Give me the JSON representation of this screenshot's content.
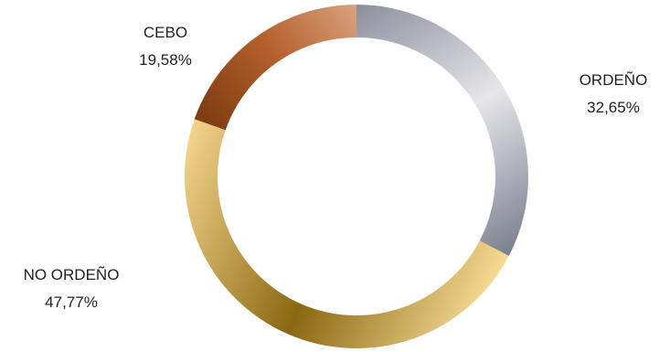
{
  "chart_data": {
    "type": "pie",
    "variant": "donut",
    "start_angle_deg": 0,
    "direction": "clockwise",
    "slices": [
      {
        "label": "ORDEÑO",
        "value": 32.65,
        "value_label": "32,65%",
        "colors": [
          "#8c8f9b",
          "#e6e6ea",
          "#7b7f8e"
        ]
      },
      {
        "label": "NO ORDEÑO",
        "value": 47.77,
        "value_label": "47,77%",
        "colors": [
          "#f7dc95",
          "#8a6712",
          "#f3d48b"
        ]
      },
      {
        "label": "CEBO",
        "value": 19.58,
        "value_label": "19,58%",
        "colors": [
          "#7a3a10",
          "#b35f2b",
          "#d9a27e"
        ]
      }
    ],
    "title": "",
    "legend": "none"
  }
}
